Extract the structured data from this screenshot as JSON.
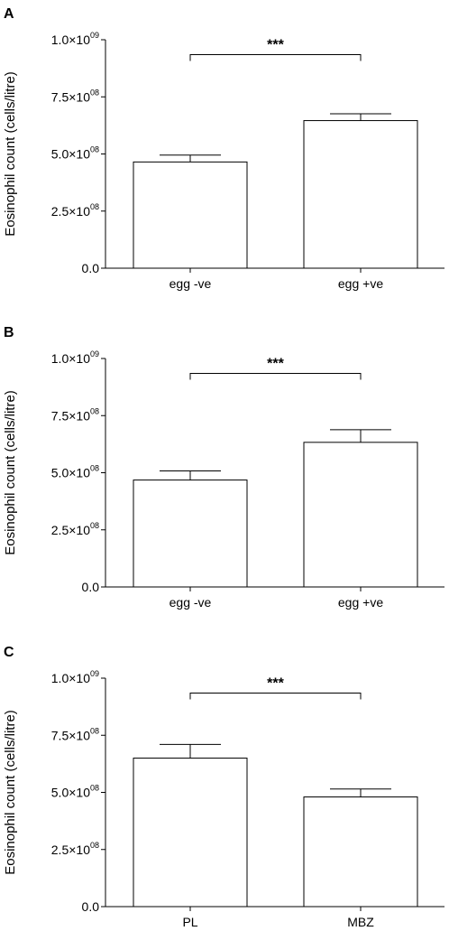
{
  "chart_data": [
    {
      "type": "bar",
      "panel": "A",
      "categories": [
        "egg -ve",
        "egg +ve"
      ],
      "values": [
        465000000,
        646000000
      ],
      "errors": [
        30000000,
        30000000
      ],
      "ylabel": "Eosinophil count (cells/litre)",
      "ylim": [
        0,
        1000000000
      ],
      "yticks": [
        {
          "value": 0,
          "label": "0.0",
          "exp": ""
        },
        {
          "value": 250000000,
          "label": "2.5×10",
          "exp": "08"
        },
        {
          "value": 500000000,
          "label": "5.0×10",
          "exp": "08"
        },
        {
          "value": 750000000,
          "label": "7.5×10",
          "exp": "08"
        },
        {
          "value": 1000000000,
          "label": "1.0×10",
          "exp": "09"
        }
      ],
      "significance": "***",
      "sig_value": 935000000,
      "bar_color": "#ffffff",
      "edge_color": "#000000"
    },
    {
      "type": "bar",
      "panel": "B",
      "categories": [
        "egg -ve",
        "egg +ve"
      ],
      "values": [
        468000000,
        633000000
      ],
      "errors": [
        40000000,
        55000000
      ],
      "ylabel": "Eosinophil count (cells/litre)",
      "ylim": [
        0,
        1000000000
      ],
      "yticks": [
        {
          "value": 0,
          "label": "0.0",
          "exp": ""
        },
        {
          "value": 250000000,
          "label": "2.5×10",
          "exp": "08"
        },
        {
          "value": 500000000,
          "label": "5.0×10",
          "exp": "08"
        },
        {
          "value": 750000000,
          "label": "7.5×10",
          "exp": "08"
        },
        {
          "value": 1000000000,
          "label": "1.0×10",
          "exp": "09"
        }
      ],
      "significance": "***",
      "sig_value": 935000000,
      "bar_color": "#ffffff",
      "edge_color": "#000000"
    },
    {
      "type": "bar",
      "panel": "C",
      "categories": [
        "PL",
        "MBZ"
      ],
      "values": [
        650000000,
        480000000
      ],
      "errors": [
        60000000,
        35000000
      ],
      "ylabel": "Eosinophil count (cells/litre)",
      "ylim": [
        0,
        1000000000
      ],
      "yticks": [
        {
          "value": 0,
          "label": "0.0",
          "exp": ""
        },
        {
          "value": 250000000,
          "label": "2.5×10",
          "exp": "08"
        },
        {
          "value": 500000000,
          "label": "5.0×10",
          "exp": "08"
        },
        {
          "value": 750000000,
          "label": "7.5×10",
          "exp": "08"
        },
        {
          "value": 1000000000,
          "label": "1.0×10",
          "exp": "09"
        }
      ],
      "significance": "***",
      "sig_value": 935000000,
      "bar_color": "#ffffff",
      "edge_color": "#000000"
    }
  ]
}
